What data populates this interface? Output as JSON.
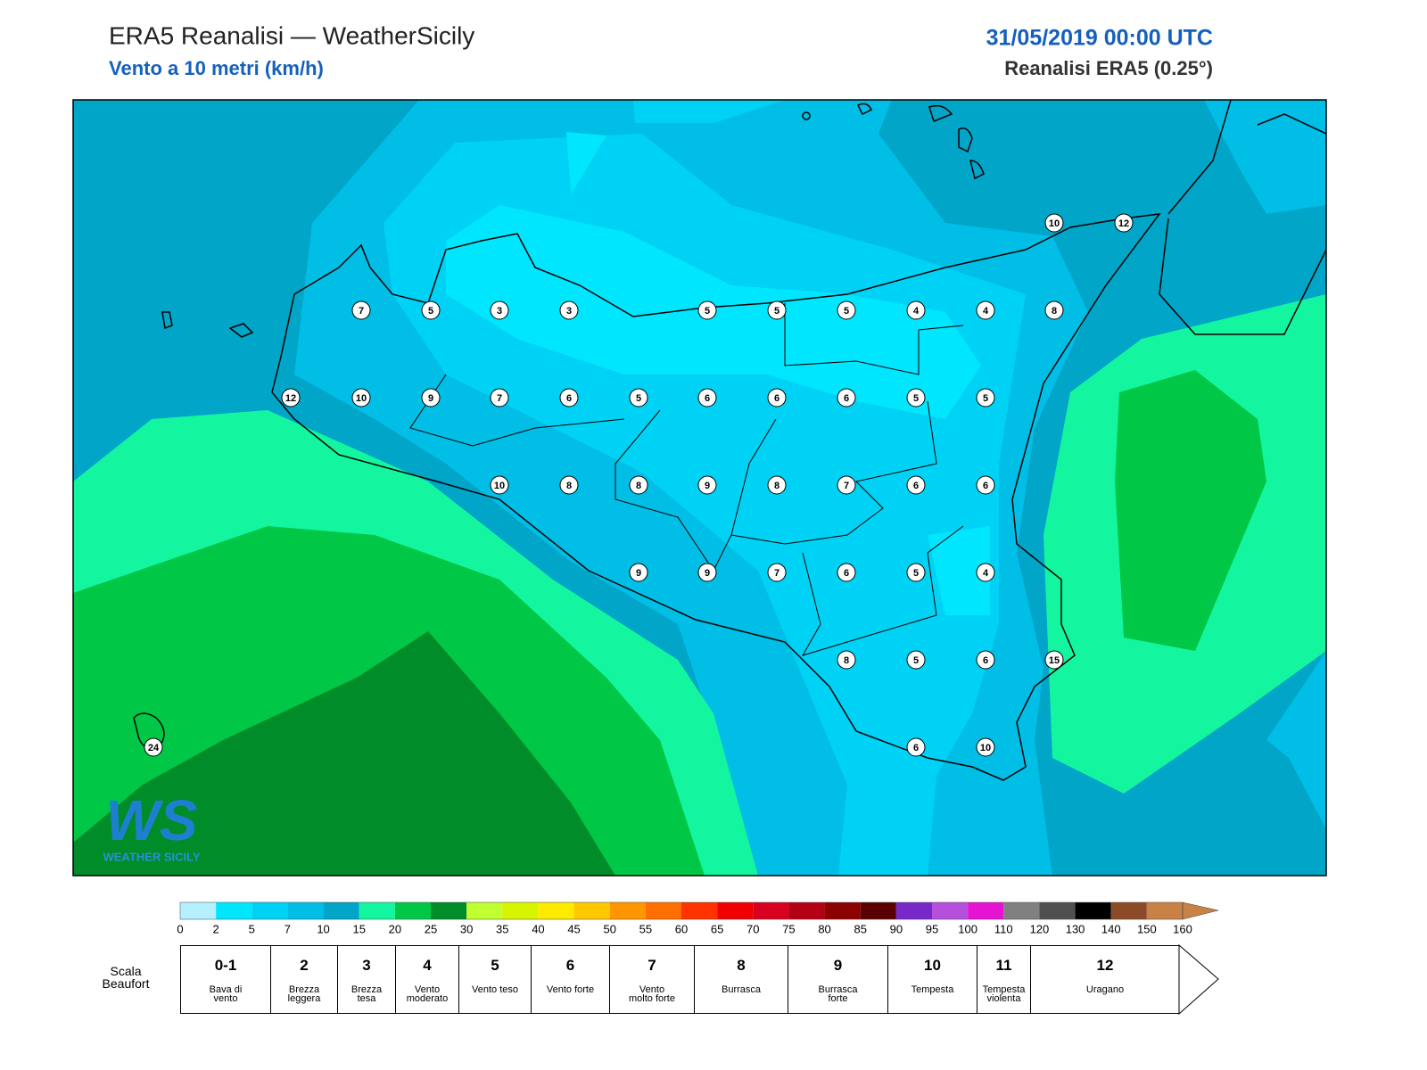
{
  "header": {
    "title": "ERA5 Reanalisi — WeatherSicily",
    "subtitle": "Vento a 10 metri (km/h)",
    "datetime": "31/05/2019 00:00 UTC",
    "source": "Reanalisi ERA5 (0.25°)"
  },
  "stations": [
    10,
    12,
    7,
    5,
    3,
    3,
    5,
    5,
    5,
    4,
    4,
    8,
    12,
    10,
    9,
    7,
    6,
    5,
    6,
    6,
    6,
    5,
    5,
    10,
    8,
    8,
    9,
    8,
    7,
    6,
    6,
    9,
    9,
    7,
    6,
    5,
    4,
    8,
    5,
    6,
    15,
    24,
    6,
    10
  ],
  "colorbar": {
    "colors": [
      "#b4f0ff",
      "#00e6ff",
      "#00d2f5",
      "#00bee6",
      "#00a5c8",
      "#14f5a0",
      "#00c846",
      "#008c28",
      "#c0ff30",
      "#d8f500",
      "#ffeb00",
      "#ffc800",
      "#ff9600",
      "#ff6e00",
      "#ff3200",
      "#f00000",
      "#d7001e",
      "#b40014",
      "#8c0000",
      "#5a0000",
      "#7828c8",
      "#b450dc",
      "#e614d2",
      "#808080",
      "#505050",
      "#000000",
      "#8c4b28",
      "#c88246"
    ],
    "ticks": [
      0,
      2,
      5,
      7,
      10,
      15,
      20,
      25,
      30,
      35,
      40,
      45,
      50,
      55,
      60,
      65,
      70,
      75,
      80,
      85,
      90,
      95,
      100,
      110,
      120,
      130,
      140,
      150,
      160
    ]
  },
  "beaufort": {
    "title": "Scala Beaufort",
    "levels": [
      {
        "force": "0-1",
        "label": "Bava di vento"
      },
      {
        "force": "2",
        "label": "Brezza leggera"
      },
      {
        "force": "3",
        "label": "Brezza tesa"
      },
      {
        "force": "4",
        "label": "Vento moderato"
      },
      {
        "force": "5",
        "label": "Vento teso"
      },
      {
        "force": "6",
        "label": "Vento forte"
      },
      {
        "force": "7",
        "label": "Vento molto forte"
      },
      {
        "force": "8",
        "label": "Burrasca"
      },
      {
        "force": "9",
        "label": "Burrasca forte"
      },
      {
        "force": "10",
        "label": "Tempesta"
      },
      {
        "force": "11",
        "label": "Tempesta violenta"
      },
      {
        "force": "12",
        "label": "Uragano"
      }
    ]
  },
  "logo": {
    "mark": "WS",
    "name": "WEATHER SICILY"
  }
}
